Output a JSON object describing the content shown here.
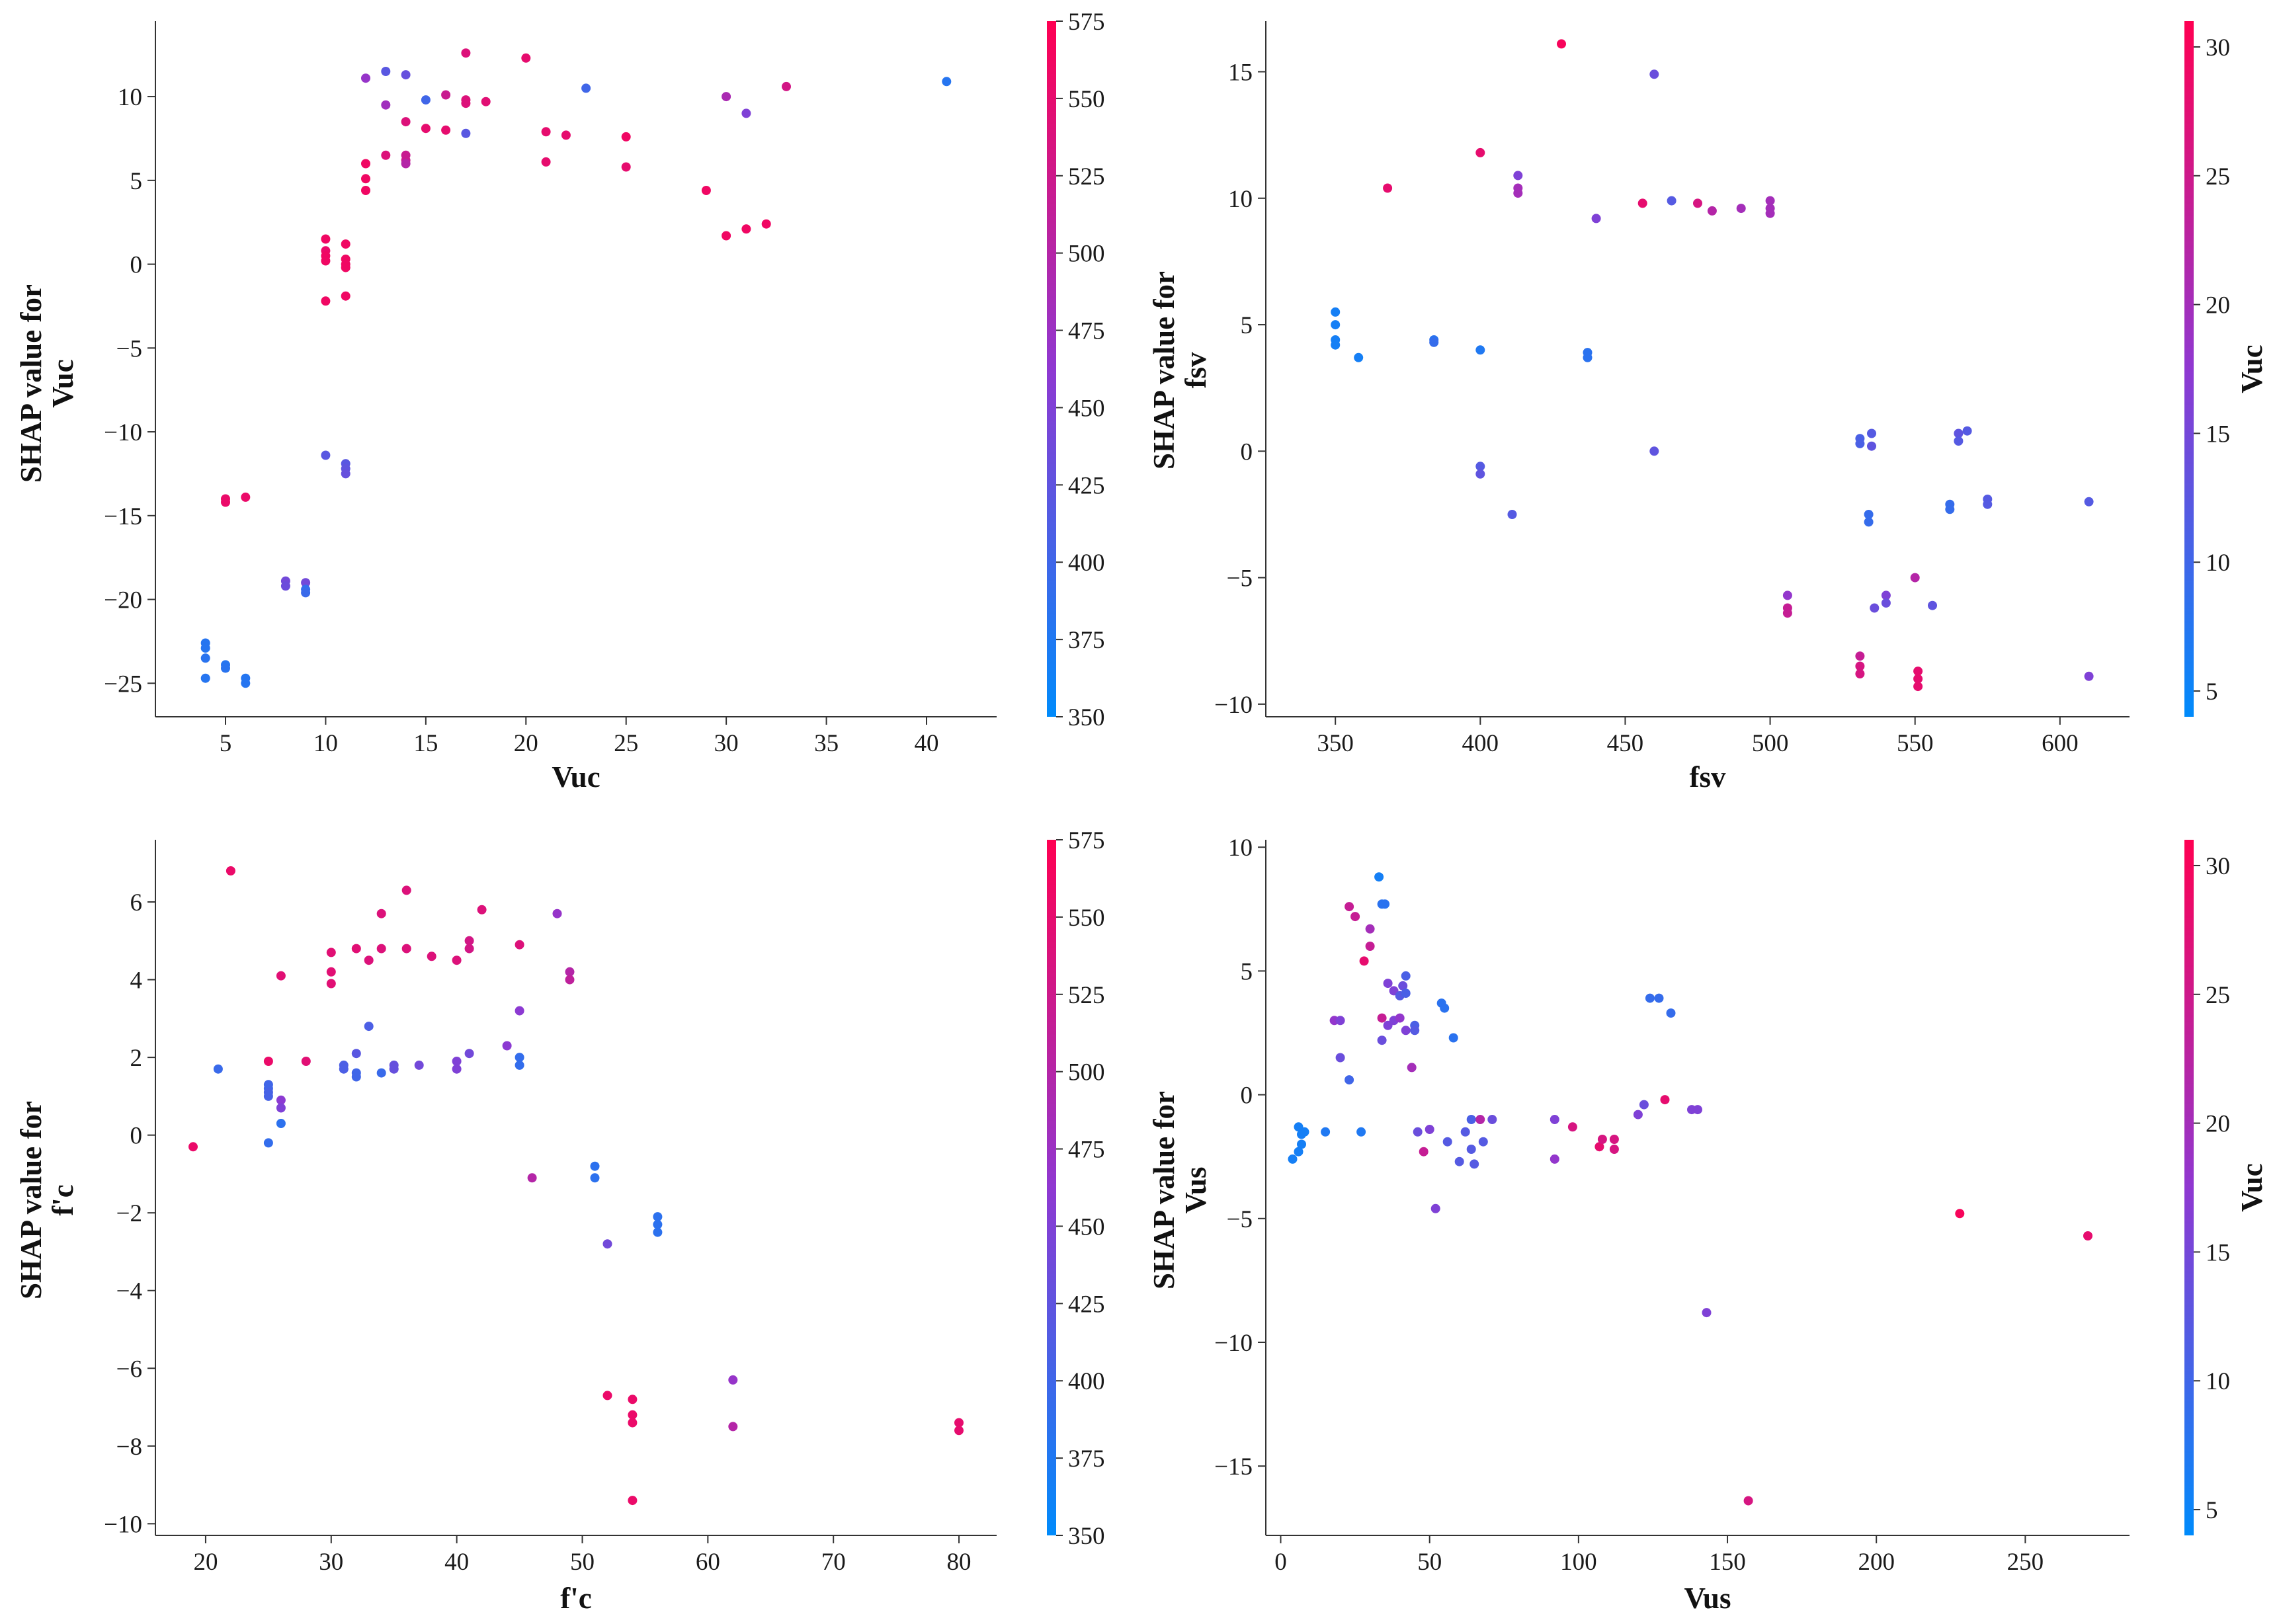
{
  "chart_data": [
    {
      "type": "scatter",
      "id": "vuc",
      "xlabel": "Vuc",
      "ylabel_line1": "SHAP value for",
      "ylabel_line2": "Vuc",
      "xlim": [
        1.5,
        43.5
      ],
      "ylim": [
        -27,
        14.5
      ],
      "xticks": [
        5,
        10,
        15,
        20,
        25,
        30,
        35,
        40
      ],
      "yticks": [
        -25,
        -20,
        -15,
        -10,
        -5,
        0,
        5,
        10
      ],
      "colorbar": {
        "label": "",
        "min": 350,
        "max": 575,
        "ticks": [
          350,
          375,
          400,
          425,
          450,
          475,
          500,
          525,
          550,
          575
        ]
      },
      "points": [
        [
          4,
          -22.6,
          380
        ],
        [
          4,
          -22.9,
          380
        ],
        [
          4,
          -23.5,
          382
        ],
        [
          4,
          -24.7,
          380
        ],
        [
          5,
          -23.9,
          380
        ],
        [
          5,
          -24.1,
          382
        ],
        [
          6,
          -24.7,
          378
        ],
        [
          6,
          -25.0,
          380
        ],
        [
          5,
          -14.0,
          555
        ],
        [
          5,
          -14.2,
          555
        ],
        [
          6,
          -13.9,
          555
        ],
        [
          8,
          -18.9,
          440
        ],
        [
          8,
          -19.2,
          435
        ],
        [
          9,
          -19.0,
          440
        ],
        [
          9,
          -19.4,
          390
        ],
        [
          9,
          -19.6,
          395
        ],
        [
          10,
          1.5,
          560
        ],
        [
          10,
          0.8,
          555
        ],
        [
          10,
          0.5,
          560
        ],
        [
          10,
          0.2,
          560
        ],
        [
          10,
          -2.2,
          560
        ],
        [
          11,
          1.2,
          560
        ],
        [
          11,
          0.3,
          560
        ],
        [
          11,
          0.0,
          560
        ],
        [
          11,
          -0.2,
          560
        ],
        [
          11,
          -1.9,
          560
        ],
        [
          10,
          -11.4,
          420
        ],
        [
          11,
          -11.9,
          420
        ],
        [
          11,
          -12.2,
          425
        ],
        [
          11,
          -12.5,
          430
        ],
        [
          12,
          11.1,
          470
        ],
        [
          12,
          6.0,
          560
        ],
        [
          12,
          5.1,
          560
        ],
        [
          12,
          4.4,
          560
        ],
        [
          13,
          11.5,
          420
        ],
        [
          13,
          9.5,
          480
        ],
        [
          13,
          6.5,
          540
        ],
        [
          14,
          11.3,
          430
        ],
        [
          14,
          8.5,
          540
        ],
        [
          14,
          6.5,
          520
        ],
        [
          14,
          6.2,
          520
        ],
        [
          14,
          6.0,
          500
        ],
        [
          15,
          9.8,
          400
        ],
        [
          15,
          8.1,
          550
        ],
        [
          16,
          10.1,
          520
        ],
        [
          16,
          8.0,
          550
        ],
        [
          17,
          12.6,
          540
        ],
        [
          17,
          9.8,
          540
        ],
        [
          17,
          9.6,
          540
        ],
        [
          17,
          7.8,
          420
        ],
        [
          18,
          9.7,
          545
        ],
        [
          20,
          12.3,
          550
        ],
        [
          21,
          7.9,
          550
        ],
        [
          21,
          6.1,
          550
        ],
        [
          22,
          7.7,
          550
        ],
        [
          23,
          10.5,
          400
        ],
        [
          25,
          7.6,
          560
        ],
        [
          25,
          5.8,
          550
        ],
        [
          29,
          4.4,
          560
        ],
        [
          30,
          10.0,
          490
        ],
        [
          30,
          1.7,
          560
        ],
        [
          31,
          9.0,
          450
        ],
        [
          31,
          2.1,
          560
        ],
        [
          32,
          2.4,
          560
        ],
        [
          33,
          10.6,
          530
        ],
        [
          41,
          10.9,
          380
        ]
      ]
    },
    {
      "type": "scatter",
      "id": "fsv",
      "xlabel": "fsv",
      "ylabel_line1": "SHAP value for",
      "ylabel_line2": "fsv",
      "xlim": [
        326,
        624
      ],
      "ylim": [
        -10.5,
        17
      ],
      "xticks": [
        350,
        400,
        450,
        500,
        550,
        600
      ],
      "yticks": [
        -10,
        -5,
        0,
        5,
        10,
        15
      ],
      "colorbar": {
        "label": "Vuc",
        "min": 4,
        "max": 31,
        "ticks": [
          5,
          10,
          15,
          20,
          25,
          30
        ]
      },
      "points": [
        [
          350,
          5.5,
          6
        ],
        [
          350,
          5.0,
          6
        ],
        [
          350,
          4.4,
          6
        ],
        [
          350,
          4.2,
          6
        ],
        [
          358,
          3.7,
          6
        ],
        [
          384,
          4.4,
          8
        ],
        [
          384,
          4.3,
          9
        ],
        [
          400,
          4.0,
          7
        ],
        [
          437,
          3.9,
          8
        ],
        [
          437,
          3.7,
          8
        ],
        [
          368,
          10.4,
          28
        ],
        [
          400,
          11.8,
          28
        ],
        [
          413,
          10.9,
          16
        ],
        [
          413,
          10.4,
          20
        ],
        [
          413,
          10.2,
          20
        ],
        [
          428,
          16.1,
          30
        ],
        [
          440,
          9.2,
          16
        ],
        [
          460,
          14.9,
          14
        ],
        [
          466,
          9.9,
          12
        ],
        [
          456,
          9.8,
          28
        ],
        [
          475,
          9.8,
          26
        ],
        [
          480,
          9.5,
          22
        ],
        [
          490,
          9.6,
          20
        ],
        [
          500,
          9.9,
          20
        ],
        [
          500,
          9.6,
          20
        ],
        [
          500,
          9.4,
          20
        ],
        [
          400,
          -0.6,
          12
        ],
        [
          400,
          -0.9,
          13
        ],
        [
          411,
          -2.5,
          12
        ],
        [
          460,
          0.0,
          13
        ],
        [
          531,
          0.5,
          11
        ],
        [
          531,
          0.3,
          11
        ],
        [
          535,
          0.7,
          12
        ],
        [
          535,
          0.2,
          13
        ],
        [
          534,
          -2.5,
          9
        ],
        [
          534,
          -2.8,
          9
        ],
        [
          565,
          0.7,
          13
        ],
        [
          565,
          0.4,
          12
        ],
        [
          568,
          0.8,
          12
        ],
        [
          562,
          -2.1,
          9
        ],
        [
          562,
          -2.3,
          9
        ],
        [
          575,
          -1.9,
          12
        ],
        [
          575,
          -2.1,
          12
        ],
        [
          610,
          -2.0,
          12
        ],
        [
          506,
          -5.7,
          18
        ],
        [
          506,
          -6.2,
          24
        ],
        [
          506,
          -6.4,
          24
        ],
        [
          531,
          -8.1,
          24
        ],
        [
          531,
          -8.5,
          26
        ],
        [
          531,
          -8.8,
          26
        ],
        [
          550,
          -5.0,
          22
        ],
        [
          551,
          -8.7,
          28
        ],
        [
          551,
          -9.0,
          28
        ],
        [
          551,
          -9.3,
          28
        ],
        [
          536,
          -6.2,
          14
        ],
        [
          540,
          -5.7,
          16
        ],
        [
          540,
          -6.0,
          14
        ],
        [
          556,
          -6.1,
          13
        ],
        [
          610,
          -8.9,
          16
        ]
      ]
    },
    {
      "type": "scatter",
      "id": "fc",
      "xlabel": "f'c",
      "ylabel_line1": "SHAP value for",
      "ylabel_line2": "f'c",
      "xlim": [
        16,
        83
      ],
      "ylim": [
        -10.3,
        7.6
      ],
      "xticks": [
        20,
        30,
        40,
        50,
        60,
        70,
        80
      ],
      "yticks": [
        -10,
        -8,
        -6,
        -4,
        -2,
        0,
        2,
        4,
        6
      ],
      "colorbar": {
        "label": "",
        "min": 350,
        "max": 575,
        "ticks": [
          350,
          375,
          400,
          425,
          450,
          475,
          500,
          525,
          550,
          575
        ]
      },
      "points": [
        [
          19,
          -0.3,
          555
        ],
        [
          21,
          1.7,
          395
        ],
        [
          22,
          6.8,
          555
        ],
        [
          25,
          1.9,
          555
        ],
        [
          25,
          1.3,
          400
        ],
        [
          25,
          1.2,
          400
        ],
        [
          25,
          1.1,
          405
        ],
        [
          25,
          1.0,
          405
        ],
        [
          25,
          -0.2,
          390
        ],
        [
          26,
          4.1,
          545
        ],
        [
          26,
          0.9,
          460
        ],
        [
          26,
          0.7,
          450
        ],
        [
          26,
          0.3,
          385
        ],
        [
          28,
          1.9,
          545
        ],
        [
          30,
          4.7,
          545
        ],
        [
          30,
          4.2,
          545
        ],
        [
          30,
          3.9,
          545
        ],
        [
          31,
          1.8,
          410
        ],
        [
          31,
          1.7,
          410
        ],
        [
          32,
          4.8,
          545
        ],
        [
          32,
          2.1,
          420
        ],
        [
          32,
          1.6,
          400
        ],
        [
          32,
          1.5,
          400
        ],
        [
          33,
          4.5,
          540
        ],
        [
          33,
          2.8,
          410
        ],
        [
          34,
          5.7,
          540
        ],
        [
          34,
          4.8,
          540
        ],
        [
          34,
          1.6,
          395
        ],
        [
          35,
          1.8,
          430
        ],
        [
          35,
          1.7,
          430
        ],
        [
          36,
          6.3,
          540
        ],
        [
          36,
          4.8,
          540
        ],
        [
          37,
          1.8,
          440
        ],
        [
          38,
          4.6,
          540
        ],
        [
          40,
          4.5,
          540
        ],
        [
          40,
          1.9,
          450
        ],
        [
          40,
          1.7,
          450
        ],
        [
          41,
          5.0,
          530
        ],
        [
          41,
          4.8,
          530
        ],
        [
          41,
          2.1,
          440
        ],
        [
          42,
          5.8,
          540
        ],
        [
          44,
          2.3,
          460
        ],
        [
          45,
          4.9,
          540
        ],
        [
          45,
          3.2,
          460
        ],
        [
          45,
          2.0,
          390
        ],
        [
          45,
          1.8,
          390
        ],
        [
          46,
          -1.1,
          500
        ],
        [
          48,
          5.7,
          470
        ],
        [
          49,
          4.2,
          500
        ],
        [
          49,
          4.0,
          510
        ],
        [
          51,
          -0.8,
          385
        ],
        [
          51,
          -1.1,
          385
        ],
        [
          52,
          -2.8,
          440
        ],
        [
          52,
          -6.7,
          555
        ],
        [
          54,
          -6.8,
          555
        ],
        [
          54,
          -7.2,
          555
        ],
        [
          54,
          -7.4,
          555
        ],
        [
          54,
          -9.4,
          555
        ],
        [
          56,
          -2.1,
          385
        ],
        [
          56,
          -2.3,
          385
        ],
        [
          56,
          -2.5,
          385
        ],
        [
          62,
          -6.3,
          470
        ],
        [
          62,
          -7.5,
          500
        ],
        [
          80,
          -7.4,
          550
        ],
        [
          80,
          -7.6,
          550
        ]
      ]
    },
    {
      "type": "scatter",
      "id": "vus",
      "xlabel": "Vus",
      "ylabel_line1": "SHAP value for",
      "ylabel_line2": "Vus",
      "xlim": [
        -5,
        285
      ],
      "ylim": [
        -17.8,
        10.3
      ],
      "xticks": [
        0,
        50,
        100,
        150,
        200,
        250
      ],
      "yticks": [
        -15,
        -10,
        -5,
        0,
        5,
        10
      ],
      "colorbar": {
        "label": "Vuc",
        "min": 4,
        "max": 31,
        "ticks": [
          5,
          10,
          15,
          20,
          25,
          30
        ]
      },
      "points": [
        [
          4,
          -2.6,
          6
        ],
        [
          6,
          -1.3,
          6
        ],
        [
          6,
          -2.3,
          6
        ],
        [
          7,
          -1.6,
          6
        ],
        [
          7,
          -2.0,
          6
        ],
        [
          8,
          -1.5,
          6
        ],
        [
          15,
          -1.5,
          7
        ],
        [
          27,
          -1.5,
          7
        ],
        [
          18,
          3.0,
          18
        ],
        [
          20,
          3.0,
          16
        ],
        [
          20,
          1.5,
          14
        ],
        [
          23,
          0.6,
          10
        ],
        [
          23,
          7.6,
          24
        ],
        [
          25,
          7.2,
          24
        ],
        [
          28,
          5.4,
          28
        ],
        [
          30,
          6.7,
          20
        ],
        [
          30,
          6.0,
          24
        ],
        [
          33,
          8.8,
          6
        ],
        [
          34,
          7.7,
          8
        ],
        [
          35,
          7.7,
          8
        ],
        [
          34,
          3.1,
          24
        ],
        [
          34,
          2.2,
          14
        ],
        [
          36,
          4.5,
          16
        ],
        [
          36,
          2.8,
          16
        ],
        [
          38,
          4.2,
          16
        ],
        [
          38,
          3.0,
          16
        ],
        [
          40,
          4.0,
          12
        ],
        [
          40,
          3.1,
          18
        ],
        [
          41,
          4.4,
          14
        ],
        [
          42,
          4.8,
          11
        ],
        [
          42,
          4.1,
          11
        ],
        [
          42,
          2.6,
          16
        ],
        [
          44,
          1.1,
          20
        ],
        [
          45,
          2.8,
          11
        ],
        [
          45,
          2.6,
          12
        ],
        [
          46,
          -1.5,
          14
        ],
        [
          48,
          -2.3,
          24
        ],
        [
          50,
          -1.4,
          16
        ],
        [
          52,
          -4.6,
          16
        ],
        [
          54,
          3.7,
          8
        ],
        [
          55,
          3.5,
          8
        ],
        [
          56,
          -1.9,
          12
        ],
        [
          58,
          2.3,
          8
        ],
        [
          60,
          -2.7,
          12
        ],
        [
          62,
          -1.5,
          12
        ],
        [
          64,
          -2.2,
          12
        ],
        [
          64,
          -1.0,
          11
        ],
        [
          65,
          -2.8,
          12
        ],
        [
          67,
          -1.0,
          22
        ],
        [
          68,
          -1.9,
          12
        ],
        [
          71,
          -1.0,
          14
        ],
        [
          92,
          -1.0,
          16
        ],
        [
          92,
          -2.6,
          18
        ],
        [
          98,
          -1.3,
          26
        ],
        [
          107,
          -2.1,
          28
        ],
        [
          108,
          -1.8,
          26
        ],
        [
          112,
          -1.8,
          26
        ],
        [
          112,
          -2.2,
          26
        ],
        [
          120,
          -0.8,
          16
        ],
        [
          122,
          -0.4,
          14
        ],
        [
          124,
          3.9,
          9
        ],
        [
          127,
          3.9,
          9
        ],
        [
          129,
          -0.2,
          28
        ],
        [
          131,
          3.3,
          9
        ],
        [
          138,
          -0.6,
          16
        ],
        [
          140,
          -0.6,
          16
        ],
        [
          143,
          -8.8,
          16
        ],
        [
          157,
          -16.4,
          26
        ],
        [
          228,
          -4.8,
          30
        ],
        [
          271,
          -5.7,
          28
        ]
      ]
    }
  ]
}
